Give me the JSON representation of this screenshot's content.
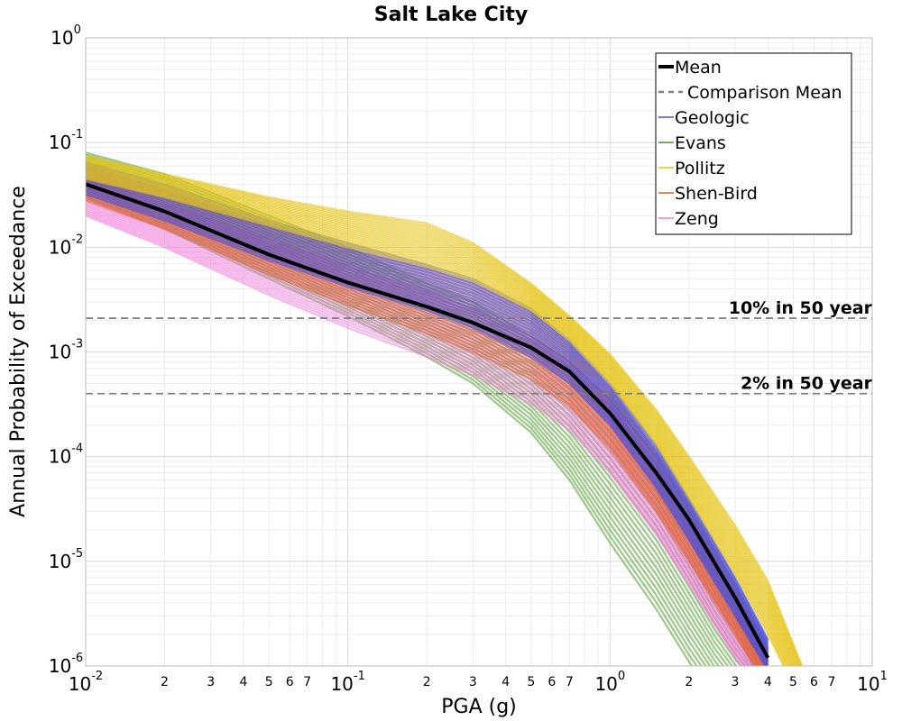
{
  "chart_data": {
    "type": "line",
    "title": "Salt Lake City",
    "xlabel": "PGA (g)",
    "ylabel": "Annual Probability of Exceedance",
    "xscale": "log",
    "yscale": "log",
    "xlim": [
      0.01,
      10
    ],
    "ylim": [
      1e-06,
      1
    ],
    "grid": true,
    "legend_position": "top-right",
    "x_major_ticks": [
      {
        "base": "10",
        "exp": "-2",
        "value": 0.01
      },
      {
        "base": "10",
        "exp": "-1",
        "value": 0.1
      },
      {
        "base": "10",
        "exp": "0",
        "value": 1
      },
      {
        "base": "10",
        "exp": "1",
        "value": 10
      }
    ],
    "x_minor_tick_labels": [
      "2",
      "3",
      "4",
      "5",
      "6",
      "7"
    ],
    "y_major_ticks": [
      {
        "base": "10",
        "exp": "0",
        "value": 1
      },
      {
        "base": "10",
        "exp": "-1",
        "value": 0.1
      },
      {
        "base": "10",
        "exp": "-2",
        "value": 0.01
      },
      {
        "base": "10",
        "exp": "-3",
        "value": 0.001
      },
      {
        "base": "10",
        "exp": "-4",
        "value": 0.0001
      },
      {
        "base": "10",
        "exp": "-5",
        "value": 1e-05
      },
      {
        "base": "10",
        "exp": "-6",
        "value": 1e-06
      }
    ],
    "reference_lines": [
      {
        "label": "10% in 50 year",
        "y": 0.0021,
        "color": "#808080",
        "style": "dashed"
      },
      {
        "label": "2% in 50 year",
        "y": 0.0004,
        "color": "#808080",
        "style": "dashed"
      }
    ],
    "legend": [
      {
        "label": "Mean",
        "color": "#000000",
        "style": "solid-thick"
      },
      {
        "label": "Comparison Mean",
        "color": "#808080",
        "style": "dashed"
      },
      {
        "label": "Geologic",
        "color": "#4a52d8",
        "style": "solid"
      },
      {
        "label": "Evans",
        "color": "#4c9a2a",
        "style": "solid"
      },
      {
        "label": "Pollitz",
        "color": "#e6c41a",
        "style": "solid"
      },
      {
        "label": "Shen-Bird",
        "color": "#e0602a",
        "style": "solid"
      },
      {
        "label": "Zeng",
        "color": "#f07ad8",
        "style": "solid"
      }
    ],
    "series": [
      {
        "name": "Mean",
        "color": "#000000",
        "x": [
          0.01,
          0.02,
          0.05,
          0.1,
          0.2,
          0.3,
          0.5,
          0.7,
          1.0,
          1.5,
          2.0,
          3.0,
          4.0
        ],
        "y": [
          0.04,
          0.022,
          0.0085,
          0.0046,
          0.0027,
          0.0019,
          0.0011,
          0.00065,
          0.00026,
          7e-05,
          2.5e-05,
          4.5e-06,
          1.2e-06
        ]
      }
    ],
    "bands": [
      {
        "name": "Evans",
        "color": "#4c9a2a",
        "x": [
          0.01,
          0.02,
          0.05,
          0.1,
          0.2,
          0.3,
          0.5,
          0.7,
          1.0,
          1.5,
          2.0,
          2.5,
          3.0,
          4.0
        ],
        "upper": [
          0.08,
          0.05,
          0.02,
          0.01,
          0.0045,
          0.003,
          0.0014,
          0.0008,
          0.00035,
          0.0001,
          3e-05,
          1e-05,
          4.5e-06,
          1.2e-06
        ],
        "lower": [
          0.03,
          0.015,
          0.005,
          0.0022,
          0.0009,
          0.0005,
          0.00017,
          6e-05,
          1.5e-05,
          3.5e-06,
          1.1e-06,
          5e-07,
          3e-07,
          2e-07
        ]
      },
      {
        "name": "Zeng",
        "color": "#f07ad8",
        "x": [
          0.01,
          0.02,
          0.05,
          0.1,
          0.2,
          0.3,
          0.5,
          0.7,
          1.0,
          1.5,
          2.0,
          3.0,
          4.0
        ],
        "upper": [
          0.045,
          0.026,
          0.012,
          0.0065,
          0.0038,
          0.0026,
          0.0014,
          0.0008,
          0.00032,
          8e-05,
          2.5e-05,
          4.5e-06,
          1.2e-06
        ],
        "lower": [
          0.02,
          0.01,
          0.0035,
          0.0017,
          0.0009,
          0.0006,
          0.00032,
          0.00018,
          7e-05,
          1.8e-05,
          6e-06,
          1.2e-06,
          4e-07
        ]
      },
      {
        "name": "Shen-Bird",
        "color": "#e0602a",
        "x": [
          0.01,
          0.02,
          0.05,
          0.1,
          0.2,
          0.3,
          0.5,
          0.7,
          1.0,
          1.5,
          2.0,
          3.0,
          4.0
        ],
        "upper": [
          0.06,
          0.035,
          0.016,
          0.0095,
          0.0062,
          0.0045,
          0.0024,
          0.0012,
          0.00045,
          0.00011,
          3.5e-05,
          6e-06,
          1.5e-06
        ],
        "lower": [
          0.028,
          0.015,
          0.0055,
          0.0028,
          0.0015,
          0.001,
          0.00055,
          0.0003,
          0.00012,
          3e-05,
          1e-05,
          2e-06,
          6e-07
        ]
      },
      {
        "name": "Geologic",
        "color": "#4a52d8",
        "x": [
          0.01,
          0.02,
          0.05,
          0.1,
          0.2,
          0.3,
          0.5,
          0.7,
          1.0,
          1.5,
          2.0,
          3.0,
          4.0
        ],
        "upper": [
          0.065,
          0.04,
          0.018,
          0.011,
          0.0068,
          0.005,
          0.0026,
          0.0013,
          0.0005,
          0.00013,
          4e-05,
          7e-06,
          1.8e-06
        ],
        "lower": [
          0.032,
          0.018,
          0.0075,
          0.0042,
          0.0025,
          0.0017,
          0.0009,
          0.0005,
          0.0002,
          5e-05,
          1.6e-05,
          3e-06,
          9e-07
        ]
      },
      {
        "name": "Pollitz",
        "color": "#e6c41a",
        "x": [
          0.01,
          0.02,
          0.05,
          0.1,
          0.2,
          0.3,
          0.5,
          0.7,
          1.0,
          1.5,
          2.0,
          3.0,
          4.0,
          5.5
        ],
        "upper": [
          0.075,
          0.05,
          0.03,
          0.022,
          0.017,
          0.011,
          0.0045,
          0.0022,
          0.00095,
          0.00028,
          0.0001,
          2.2e-05,
          6.5e-06,
          9e-07
        ],
        "lower": [
          0.045,
          0.03,
          0.016,
          0.01,
          0.0065,
          0.0048,
          0.0025,
          0.0013,
          0.0005,
          0.00013,
          4e-05,
          7.5e-06,
          2e-06,
          4e-07
        ]
      }
    ]
  }
}
